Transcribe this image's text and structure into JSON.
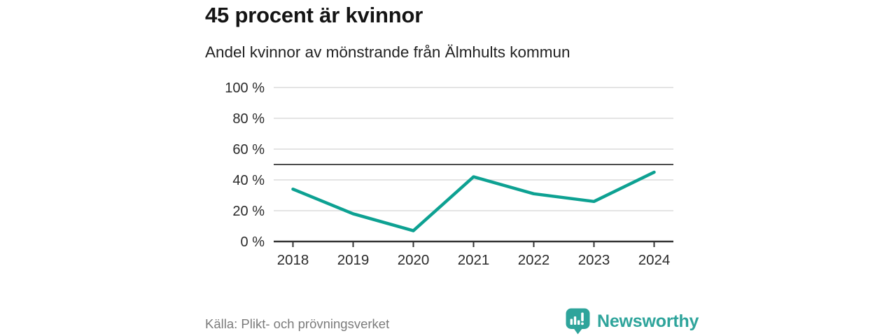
{
  "header": {
    "title": "45 procent är kvinnor",
    "subtitle": "Andel kvinnor av mönstrande från Älmhults kommun"
  },
  "chart_data": {
    "type": "line",
    "categories": [
      "2018",
      "2019",
      "2020",
      "2021",
      "2022",
      "2023",
      "2024"
    ],
    "series": [
      {
        "name": "Andel kvinnor av mönstrande",
        "values": [
          34,
          18,
          7,
          42,
          31,
          26,
          45
        ]
      }
    ],
    "unit": "%",
    "title": "45 procent är kvinnor",
    "subtitle": "Andel kvinnor av mönstrande från Älmhults kommun",
    "xlabel": "",
    "ylabel": "",
    "ylim": [
      0,
      100
    ],
    "yticks": [
      0,
      20,
      40,
      60,
      80,
      100
    ],
    "ytick_labels": [
      "0 %",
      "20 %",
      "40 %",
      "60 %",
      "80 %",
      "100 %"
    ],
    "reference_line": {
      "value": 50,
      "color": "#4d4d4d"
    },
    "grid": true,
    "legend": "none",
    "line_color": "#0da192",
    "grid_color": "#dcdcdc",
    "axis_color": "#333333",
    "tick_label_color": "#2b2b2b"
  },
  "footer": {
    "source": "Källa: Plikt- och prövningsverket",
    "brand": {
      "name": "Newsworthy",
      "color": "#2ea49b",
      "icon": "newsworthy-logo"
    }
  }
}
